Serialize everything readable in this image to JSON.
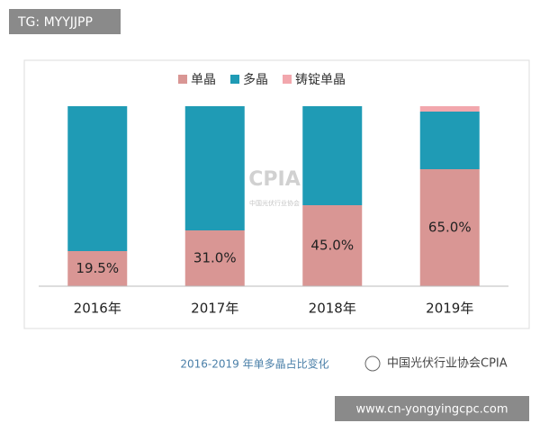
{
  "chart_data": {
    "type": "stacked_bar",
    "categories": [
      "2016年",
      "2017年",
      "2018年",
      "2019年"
    ],
    "series": [
      {
        "name": "单晶",
        "color": "#d99694",
        "values": [
          19.5,
          31.0,
          45.0,
          65.0
        ],
        "value_labels": [
          "19.5%",
          "31.0%",
          "45.0%",
          "65.0%"
        ]
      },
      {
        "name": "多晶",
        "color": "#1f9bb5",
        "values": [
          80.5,
          69.0,
          55.0,
          32
        ]
      },
      {
        "name": "铸锭单晶",
        "color": "#f2a7ad",
        "values": [
          0,
          0,
          0,
          3
        ]
      }
    ],
    "legend": "top",
    "caption": "2016-2019 年单多晶占比变化"
  },
  "logo": {
    "title": "CPIA",
    "subtitle": "中国光伏行业协会"
  },
  "watermark": "中国光伏行业协会CPIA",
  "top_badge": "TG: MYYJJPP",
  "bottom_badge": "www.cn-yongyingcpc.com"
}
